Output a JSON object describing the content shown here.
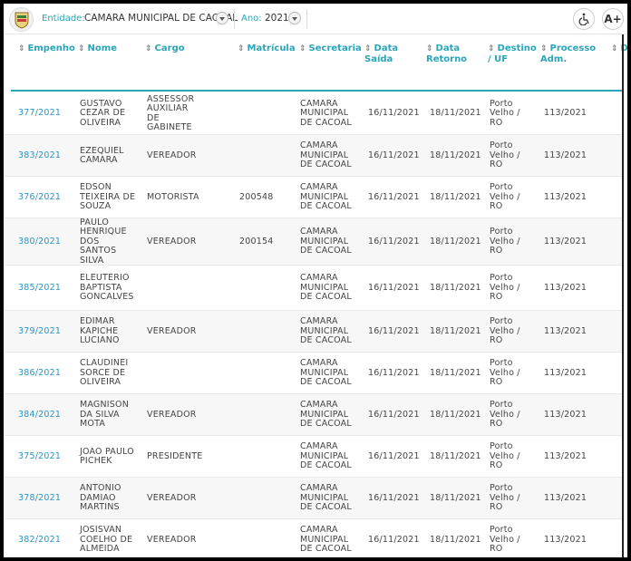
{
  "header": {
    "entidade_label": "Entidade:",
    "entidade_value": "CAMARA MUNICIPAL DE CACOAL",
    "ano_label": "Ano:",
    "ano_value": "2021",
    "accessibility_icon": "wheelchair-icon",
    "font_button": "A+"
  },
  "columns": [
    "Empenho",
    "Nome",
    "Cargo",
    "Matrícula",
    "Secretaria",
    "Data Saída",
    "Data Retorno",
    "Destino / UF",
    "Processo Adm.",
    "Diá"
  ],
  "rows": [
    {
      "empenho": "377/2021",
      "nome": "GUSTAVO CEZAR DE OLIVEIRA",
      "cargo": "ASSESSOR AUXILIAR DE GABINETE",
      "matricula": "",
      "secretaria": "CAMARA MUNICIPAL DE CACOAL",
      "saida": "16/11/2021",
      "retorno": "18/11/2021",
      "destino": "Porto Velho / RO",
      "processo": "113/2021"
    },
    {
      "empenho": "383/2021",
      "nome": "EZEQUIEL CAMARA",
      "cargo": "VEREADOR",
      "matricula": "",
      "secretaria": "CAMARA MUNICIPAL DE CACOAL",
      "saida": "16/11/2021",
      "retorno": "18/11/2021",
      "destino": "Porto Velho / RO",
      "processo": "113/2021"
    },
    {
      "empenho": "376/2021",
      "nome": "EDSON TEIXEIRA DE SOUZA",
      "cargo": "MOTORISTA",
      "matricula": "200548",
      "secretaria": "CAMARA MUNICIPAL DE CACOAL",
      "saida": "16/11/2021",
      "retorno": "18/11/2021",
      "destino": "Porto Velho / RO",
      "processo": "113/2021"
    },
    {
      "empenho": "380/2021",
      "nome": "PAULO HENRIQUE DOS SANTOS SILVA",
      "cargo": "VEREADOR",
      "matricula": "200154",
      "secretaria": "CAMARA MUNICIPAL DE CACOAL",
      "saida": "16/11/2021",
      "retorno": "18/11/2021",
      "destino": "Porto Velho / RO",
      "processo": "113/2021"
    },
    {
      "empenho": "385/2021",
      "nome": "ELEUTERIO BAPTISTA GONCALVES",
      "cargo": "",
      "matricula": "",
      "secretaria": "CAMARA MUNICIPAL DE CACOAL",
      "saida": "16/11/2021",
      "retorno": "18/11/2021",
      "destino": "Porto Velho / RO",
      "processo": "113/2021"
    },
    {
      "empenho": "379/2021",
      "nome": "EDIMAR KAPICHE LUCIANO",
      "cargo": "VEREADOR",
      "matricula": "",
      "secretaria": "CAMARA MUNICIPAL DE CACOAL",
      "saida": "16/11/2021",
      "retorno": "18/11/2021",
      "destino": "Porto Velho / RO",
      "processo": "113/2021"
    },
    {
      "empenho": "386/2021",
      "nome": "CLAUDINEI SORCE DE OLIVEIRA",
      "cargo": "",
      "matricula": "",
      "secretaria": "CAMARA MUNICIPAL DE CACOAL",
      "saida": "16/11/2021",
      "retorno": "18/11/2021",
      "destino": "Porto Velho / RO",
      "processo": "113/2021"
    },
    {
      "empenho": "384/2021",
      "nome": "MAGNISON DA SILVA MOTA",
      "cargo": "VEREADOR",
      "matricula": "",
      "secretaria": "CAMARA MUNICIPAL DE CACOAL",
      "saida": "16/11/2021",
      "retorno": "18/11/2021",
      "destino": "Porto Velho / RO",
      "processo": "113/2021"
    },
    {
      "empenho": "375/2021",
      "nome": "JOAO PAULO PICHEK",
      "cargo": "PRESIDENTE",
      "matricula": "",
      "secretaria": "CAMARA MUNICIPAL DE CACOAL",
      "saida": "16/11/2021",
      "retorno": "18/11/2021",
      "destino": "Porto Velho / RO",
      "processo": "113/2021"
    },
    {
      "empenho": "378/2021",
      "nome": "ANTONIO DAMIAO MARTINS",
      "cargo": "VEREADOR",
      "matricula": "",
      "secretaria": "CAMARA MUNICIPAL DE CACOAL",
      "saida": "16/11/2021",
      "retorno": "18/11/2021",
      "destino": "Porto Velho / RO",
      "processo": "113/2021"
    },
    {
      "empenho": "382/2021",
      "nome": "JOSISVAN COELHO DE ALMEIDA",
      "cargo": "VEREADOR",
      "matricula": "",
      "secretaria": "CAMARA MUNICIPAL DE CACOAL",
      "saida": "16/11/2021",
      "retorno": "18/11/2021",
      "destino": "Porto Velho / RO",
      "processo": "113/2021"
    }
  ],
  "colors": {
    "accent": "#2aa5b8",
    "link": "#2a95c8",
    "row_alt": "#f7f7f7"
  }
}
